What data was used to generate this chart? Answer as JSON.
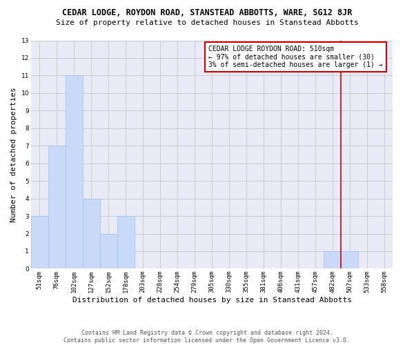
{
  "title": "CEDAR LODGE, ROYDON ROAD, STANSTEAD ABBOTTS, WARE, SG12 8JR",
  "subtitle": "Size of property relative to detached houses in Stanstead Abbotts",
  "xlabel": "Distribution of detached houses by size in Stanstead Abbotts",
  "ylabel": "Number of detached properties",
  "footer_line1": "Contains HM Land Registry data © Crown copyright and database right 2024.",
  "footer_line2": "Contains public sector information licensed under the Open Government Licence v3.0.",
  "bins": [
    "51sqm",
    "76sqm",
    "102sqm",
    "127sqm",
    "152sqm",
    "178sqm",
    "203sqm",
    "228sqm",
    "254sqm",
    "279sqm",
    "305sqm",
    "330sqm",
    "355sqm",
    "381sqm",
    "406sqm",
    "431sqm",
    "457sqm",
    "482sqm",
    "507sqm",
    "533sqm",
    "558sqm"
  ],
  "values": [
    3,
    7,
    11,
    4,
    2,
    3,
    0,
    0,
    0,
    0,
    0,
    0,
    0,
    0,
    0,
    0,
    0,
    1,
    1,
    0,
    0
  ],
  "bar_color": "#c9daf8",
  "bar_edge_color": "#a4c2f4",
  "grid_color": "#cccccc",
  "background_color": "#e8eaf6",
  "vline_color": "#cc0000",
  "vline_x": 17.5,
  "annotation_text": "CEDAR LODGE ROYDON ROAD: 510sqm\n← 97% of detached houses are smaller (30)\n3% of semi-detached houses are larger (1) →",
  "annotation_box_color": "#cc0000",
  "annotation_fill_color": "#ffffff",
  "ylim": [
    0,
    13
  ],
  "yticks": [
    0,
    1,
    2,
    3,
    4,
    5,
    6,
    7,
    8,
    9,
    10,
    11,
    12,
    13
  ],
  "title_fontsize": 8.5,
  "subtitle_fontsize": 8,
  "ylabel_fontsize": 8,
  "xlabel_fontsize": 8,
  "tick_fontsize": 6.5,
  "footer_fontsize": 6,
  "annotation_fontsize": 7
}
